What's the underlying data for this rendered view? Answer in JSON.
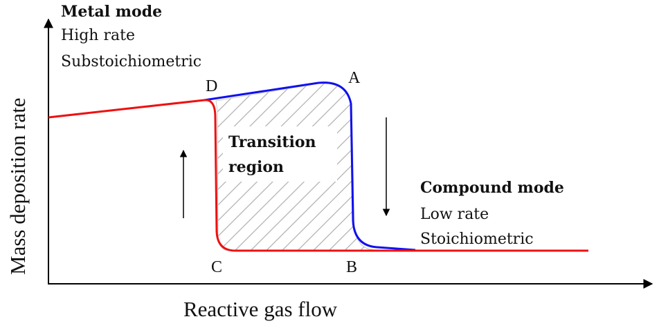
{
  "axes": {
    "y_label": "Mass deposition rate",
    "x_label": "Reactive gas flow"
  },
  "metal_mode": {
    "title": "Metal mode",
    "line1": "High rate",
    "line2": "Substoichiometric"
  },
  "compound_mode": {
    "title": "Compound mode",
    "line1": "Low rate",
    "line2": "Stoichiometric"
  },
  "transition": {
    "line1": "Transition",
    "line2": "region"
  },
  "points": {
    "A": "A",
    "B": "B",
    "C": "C",
    "D": "D"
  },
  "colors": {
    "increasing_flow": "#1010ee",
    "decreasing_flow": "#ee1010",
    "hatch": "#b0b0b0"
  }
}
